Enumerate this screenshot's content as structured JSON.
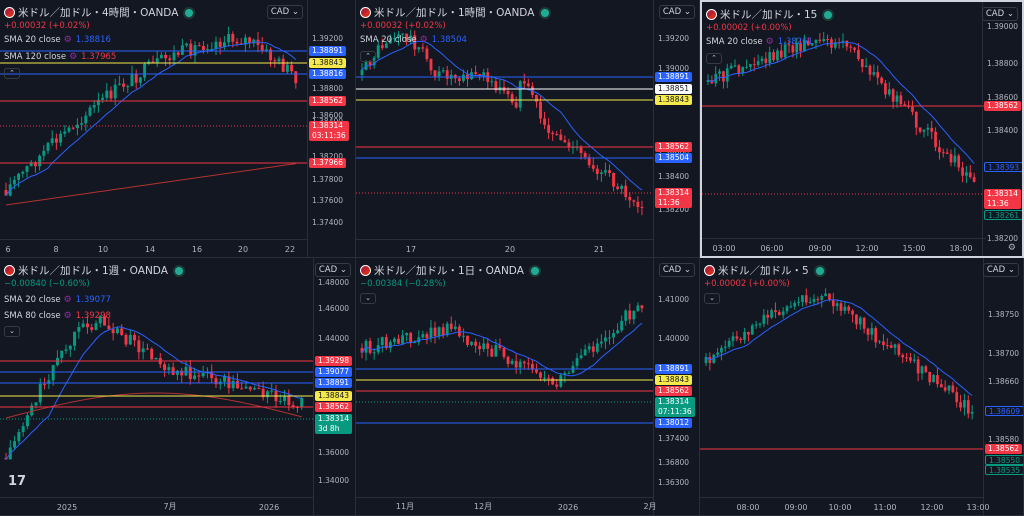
{
  "colors": {
    "up": "#089981",
    "down": "#f23645",
    "sma_blue": "#2962ff",
    "sma_red": "#b2322f",
    "yellow_line": "#f5e94c",
    "bg": "#131722"
  },
  "panels": [
    {
      "title": "米ドル／加ドル・4時間・OANDA",
      "change": "+0.00032 (+0.02%)",
      "change_dir": "up",
      "currency": "CAD",
      "indicators": [
        {
          "label": "SMA 20 close",
          "value": "1.38816",
          "color": "#2962ff"
        },
        {
          "label": "SMA 120 close",
          "value": "1.37965",
          "color": "#f23645"
        }
      ],
      "y_ticks": [
        "1.39200",
        "1.39000",
        "1.38800",
        "1.38600",
        "1.38400",
        "1.38200",
        "1.37800",
        "1.37600",
        "1.37400"
      ],
      "price_tags": [
        {
          "text": "1.38891",
          "color": "#2962ff"
        },
        {
          "text": "1.38843",
          "color": "#f5e94c",
          "dark": true
        },
        {
          "text": "1.38816",
          "color": "#2962ff"
        },
        {
          "text": "1.38562",
          "color": "#f23645"
        },
        {
          "text": "1.38314\n03:11:36",
          "color": "#f23645"
        },
        {
          "text": "1.37966",
          "color": "#f23645"
        }
      ],
      "x_ticks": [
        "6",
        "8",
        "10",
        "14",
        "16",
        "20",
        "22"
      ]
    },
    {
      "title": "米ドル／加ドル・1時間・OANDA",
      "change": "+0.00032 (+0.02%)",
      "change_dir": "up",
      "currency": "CAD",
      "indicators": [
        {
          "label": "SMA 20 close",
          "value": "1.38504",
          "color": "#2962ff"
        }
      ],
      "y_ticks": [
        "1.39200",
        "1.39000",
        "1.38800",
        "1.38600",
        "1.38400",
        "1.38200"
      ],
      "price_tags": [
        {
          "text": "1.38891",
          "color": "#2962ff"
        },
        {
          "text": "1.38851",
          "color": "#ffffff",
          "dark": true
        },
        {
          "text": "1.38843",
          "color": "#f5e94c",
          "dark": true
        },
        {
          "text": "1.38562",
          "color": "#f23645"
        },
        {
          "text": "1.38504",
          "color": "#2962ff"
        },
        {
          "text": "1.38314\n11:36",
          "color": "#f23645"
        }
      ],
      "x_ticks": [
        "17",
        "20",
        "21"
      ]
    },
    {
      "title": "米ドル／加ドル・15",
      "change": "+0.00002 (+0.00%)",
      "change_dir": "up",
      "currency": "CAD",
      "indicators": [
        {
          "label": "SMA 20 close",
          "value": "1.38261",
          "color": "#2962ff"
        }
      ],
      "y_ticks": [
        "1.39000",
        "1.38800",
        "1.38600",
        "1.38400",
        "1.38200"
      ],
      "price_tags": [
        {
          "text": "1.38562",
          "color": "#f23645"
        },
        {
          "text": "1.38393",
          "color": "#131722",
          "outline": "#2962ff"
        },
        {
          "text": "1.38314\n11:36",
          "color": "#f23645"
        },
        {
          "text": "1.38261",
          "color": "#131722",
          "outline": "#089981"
        }
      ],
      "x_ticks": [
        "03:00",
        "06:00",
        "09:00",
        "12:00",
        "15:00",
        "18:00"
      ]
    },
    {
      "title": "米ドル／加ドル・1週・OANDA",
      "change": "−0.00840 (−0.60%)",
      "change_dir": "down",
      "currency": "CAD",
      "indicators": [
        {
          "label": "SMA 20 close",
          "value": "1.39077",
          "color": "#2962ff"
        },
        {
          "label": "SMA 80 close",
          "value": "1.39298",
          "color": "#f23645"
        }
      ],
      "y_ticks": [
        "1.48000",
        "1.46000",
        "1.44000",
        "1.42000",
        "1.40000",
        "1.38000",
        "1.36000",
        "1.34000"
      ],
      "price_tags": [
        {
          "text": "1.39298",
          "color": "#f23645"
        },
        {
          "text": "1.39077",
          "color": "#2962ff"
        },
        {
          "text": "1.38891",
          "color": "#2962ff"
        },
        {
          "text": "1.38843",
          "color": "#f5e94c",
          "dark": true
        },
        {
          "text": "1.38562",
          "color": "#f23645"
        },
        {
          "text": "1.38314\n3d 8h",
          "color": "#089981"
        }
      ],
      "x_ticks": [
        "2025",
        "7月",
        "2026"
      ]
    },
    {
      "title": "米ドル／加ドル・1日・OANDA",
      "change": "−0.00384 (−0.28%)",
      "change_dir": "down",
      "currency": "CAD",
      "indicators": [],
      "y_ticks": [
        "1.41000",
        "1.40000",
        "1.39000",
        "1.38000",
        "1.37400",
        "1.36800",
        "1.36300"
      ],
      "price_tags": [
        {
          "text": "1.38891",
          "color": "#2962ff"
        },
        {
          "text": "1.38843",
          "color": "#f5e94c",
          "dark": true
        },
        {
          "text": "1.38562",
          "color": "#f23645"
        },
        {
          "text": "1.38314\n07:11:36",
          "color": "#089981"
        },
        {
          "text": "1.38012",
          "color": "#2962ff"
        }
      ],
      "x_ticks": [
        "11月",
        "12月",
        "2026",
        "2月"
      ]
    },
    {
      "title": "米ドル／加ドル・5",
      "change": "+0.00002 (+0.00%)",
      "change_dir": "up",
      "currency": "CAD",
      "indicators": [],
      "y_ticks": [
        "1.38750",
        "1.38700",
        "1.38660",
        "1.38620",
        "1.38580",
        "1.38550"
      ],
      "price_tags": [
        {
          "text": "1.38609",
          "color": "#131722",
          "outline": "#2962ff"
        },
        {
          "text": "1.38562",
          "color": "#f23645"
        },
        {
          "text": "1.38550",
          "color": "#131722",
          "outline": "#089981"
        },
        {
          "text": "1.38535",
          "color": "#131722",
          "outline": "#089981"
        }
      ],
      "x_ticks": [
        "08:00",
        "09:00",
        "10:00",
        "11:00",
        "12:00",
        "13:00"
      ]
    }
  ],
  "icons": {
    "collapse": "chevron-up-icon",
    "status": "market-open-dot-icon",
    "settings": "gear-icon",
    "logo": "tradingview-logo"
  }
}
